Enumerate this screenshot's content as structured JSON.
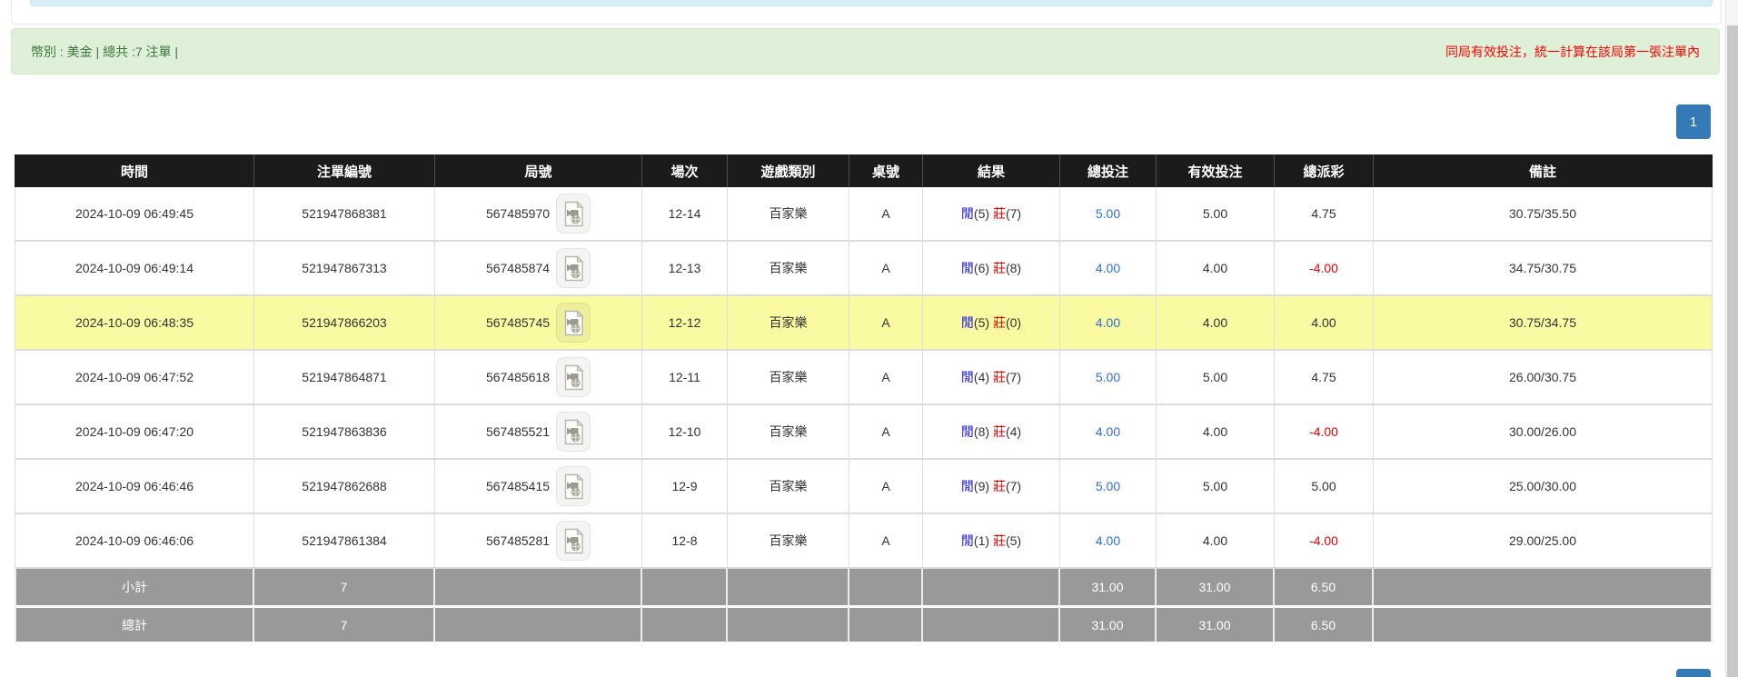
{
  "alert": {
    "left": "幣別 : 美金 | 總共 :7 注單 |",
    "right": "同局有效投注，統一計算在該局第一張注單內"
  },
  "pagination": {
    "page": "1"
  },
  "icons": {
    "replay": "video-file-icon"
  },
  "colors": {
    "accent_blue": "#337ab7",
    "link_blue": "#2d6fd9",
    "highlight_yellow": "#fafaa2",
    "header_black": "#1b1b1b",
    "sum_gray": "#999999",
    "alert_bg_green": "#dff0d8",
    "alert_text_green": "#3c763d",
    "alert_text_red": "#ff0000",
    "player_blue": "#1414e6",
    "banker_red": "#e60000"
  },
  "table": {
    "columns": [
      "時間",
      "注單編號",
      "局號",
      "場次",
      "遊戲類別",
      "桌號",
      "結果",
      "總投注",
      "有效投注",
      "總派彩",
      "備註"
    ],
    "result_labels": {
      "player": "閒",
      "banker": "莊"
    },
    "rows": [
      {
        "time": "2024-10-09 06:49:45",
        "bet_no": "521947868381",
        "round_no": "567485970",
        "session": "12-14",
        "game": "百家樂",
        "table_no": "A",
        "player": "5",
        "banker": "7",
        "total_bet": "5.00",
        "valid_bet": "5.00",
        "payout": "4.75",
        "remark": "30.75/35.50",
        "highlight": false
      },
      {
        "time": "2024-10-09 06:49:14",
        "bet_no": "521947867313",
        "round_no": "567485874",
        "session": "12-13",
        "game": "百家樂",
        "table_no": "A",
        "player": "6",
        "banker": "8",
        "total_bet": "4.00",
        "valid_bet": "4.00",
        "payout": "-4.00",
        "remark": "34.75/30.75",
        "highlight": false
      },
      {
        "time": "2024-10-09 06:48:35",
        "bet_no": "521947866203",
        "round_no": "567485745",
        "session": "12-12",
        "game": "百家樂",
        "table_no": "A",
        "player": "5",
        "banker": "0",
        "total_bet": "4.00",
        "valid_bet": "4.00",
        "payout": "4.00",
        "remark": "30.75/34.75",
        "highlight": true
      },
      {
        "time": "2024-10-09 06:47:52",
        "bet_no": "521947864871",
        "round_no": "567485618",
        "session": "12-11",
        "game": "百家樂",
        "table_no": "A",
        "player": "4",
        "banker": "7",
        "total_bet": "5.00",
        "valid_bet": "5.00",
        "payout": "4.75",
        "remark": "26.00/30.75",
        "highlight": false
      },
      {
        "time": "2024-10-09 06:47:20",
        "bet_no": "521947863836",
        "round_no": "567485521",
        "session": "12-10",
        "game": "百家樂",
        "table_no": "A",
        "player": "8",
        "banker": "4",
        "total_bet": "4.00",
        "valid_bet": "4.00",
        "payout": "-4.00",
        "remark": "30.00/26.00",
        "highlight": false
      },
      {
        "time": "2024-10-09 06:46:46",
        "bet_no": "521947862688",
        "round_no": "567485415",
        "session": "12-9",
        "game": "百家樂",
        "table_no": "A",
        "player": "9",
        "banker": "7",
        "total_bet": "5.00",
        "valid_bet": "5.00",
        "payout": "5.00",
        "remark": "25.00/30.00",
        "highlight": false
      },
      {
        "time": "2024-10-09 06:46:06",
        "bet_no": "521947861384",
        "round_no": "567485281",
        "session": "12-8",
        "game": "百家樂",
        "table_no": "A",
        "player": "1",
        "banker": "5",
        "total_bet": "4.00",
        "valid_bet": "4.00",
        "payout": "-4.00",
        "remark": "29.00/25.00",
        "highlight": false
      }
    ],
    "subtotal": {
      "label": "小計",
      "count": "7",
      "total_bet": "31.00",
      "valid_bet": "31.00",
      "payout": "6.50"
    },
    "total": {
      "label": "總計",
      "count": "7",
      "total_bet": "31.00",
      "valid_bet": "31.00",
      "payout": "6.50"
    }
  }
}
